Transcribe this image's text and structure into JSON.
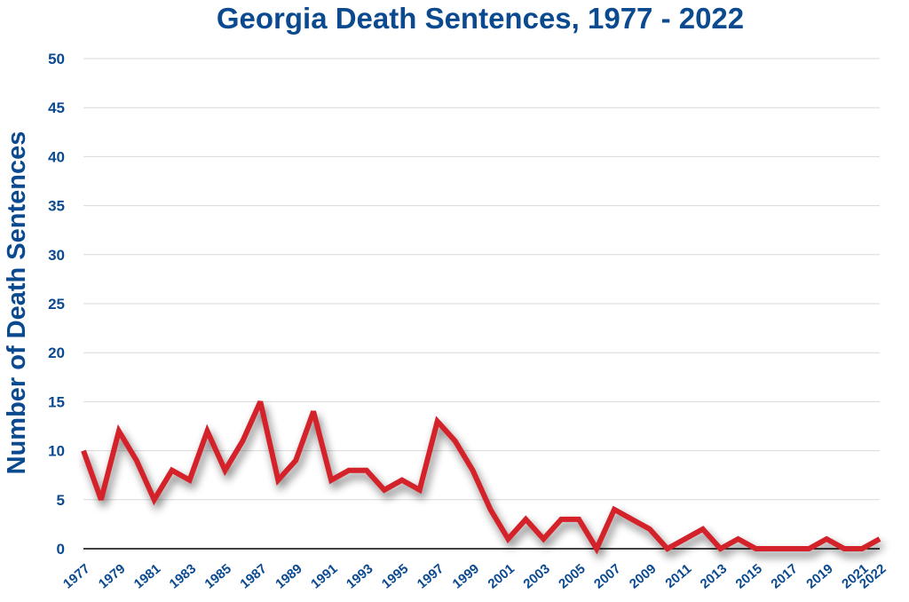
{
  "chart_data": {
    "type": "line",
    "title": "Georgia Death Sentences, 1977 - 2022",
    "xlabel": "",
    "ylabel": "Number of Death Sentences",
    "ylim": [
      0,
      50
    ],
    "yticks": [
      "0",
      "5",
      "10",
      "15",
      "20",
      "25",
      "30",
      "35",
      "40",
      "45",
      "50"
    ],
    "xtick_labels": [
      "1977",
      "1979",
      "1981",
      "1983",
      "1985",
      "1987",
      "1989",
      "1991",
      "1993",
      "1995",
      "1997",
      "1999",
      "2001",
      "2003",
      "2005",
      "2007",
      "2009",
      "2011",
      "2013",
      "2015",
      "2017",
      "2019",
      "2021",
      "2022"
    ],
    "grid": true,
    "legend": "none",
    "colors": {
      "line": "#d3202a",
      "text": "#0b4a8f",
      "grid": "#d9d9d9"
    },
    "series": [
      {
        "x": [
          1977,
          1978,
          1979,
          1980,
          1981,
          1982,
          1983,
          1984,
          1985,
          1986,
          1987,
          1988,
          1989,
          1990,
          1991,
          1992,
          1993,
          1994,
          1995,
          1996,
          1997,
          1998,
          1999,
          2000,
          2001,
          2002,
          2003,
          2004,
          2005,
          2006,
          2007,
          2008,
          2009,
          2010,
          2011,
          2012,
          2013,
          2014,
          2015,
          2016,
          2017,
          2018,
          2019,
          2020,
          2021,
          2022
        ],
        "values": [
          10,
          5,
          12,
          9,
          5,
          8,
          7,
          12,
          8,
          11,
          15,
          7,
          9,
          14,
          7,
          8,
          8,
          6,
          7,
          6,
          13,
          11,
          8,
          4,
          1,
          3,
          1,
          3,
          3,
          0,
          4,
          3,
          2,
          0,
          1,
          2,
          0,
          1,
          0,
          0,
          0,
          0,
          1,
          0,
          0,
          1
        ]
      }
    ]
  }
}
